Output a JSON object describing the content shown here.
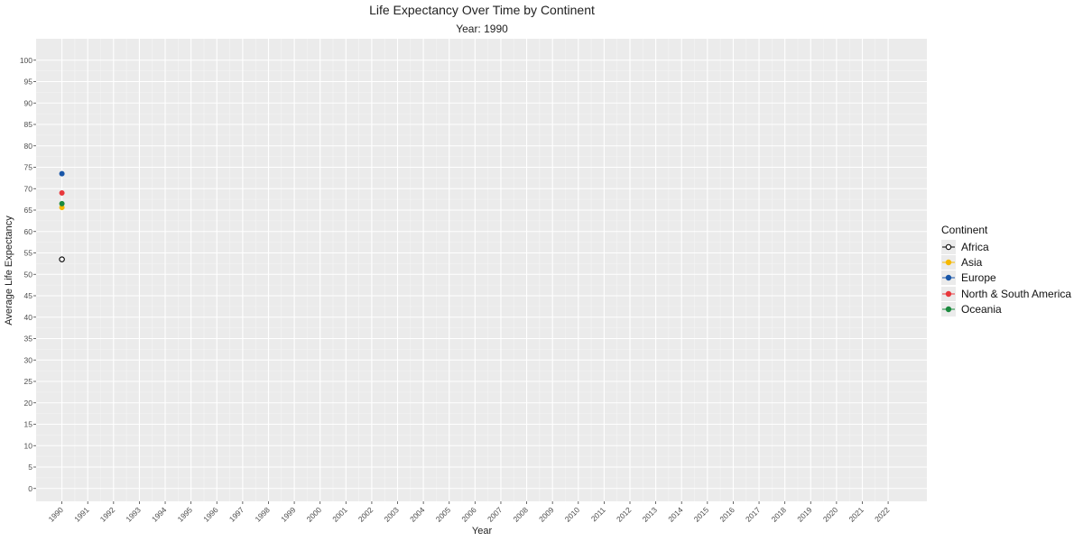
{
  "chart_data": {
    "type": "line",
    "title": "Life Expectancy Over Time by Continent",
    "subtitle": "Year: 1990",
    "xlabel": "Year",
    "ylabel": "Average Life Expectancy",
    "x_ticks": [
      "1990",
      "1991",
      "1992",
      "1993",
      "1994",
      "1995",
      "1996",
      "1997",
      "1998",
      "1999",
      "2000",
      "2001",
      "2002",
      "2003",
      "2004",
      "2005",
      "2006",
      "2007",
      "2008",
      "2009",
      "2010",
      "2011",
      "2012",
      "2013",
      "2014",
      "2015",
      "2016",
      "2017",
      "2018",
      "2019",
      "2020",
      "2021",
      "2022"
    ],
    "xlim": [
      1989,
      2023.5
    ],
    "y_ticks": [
      0,
      5,
      10,
      15,
      20,
      25,
      30,
      35,
      40,
      45,
      50,
      55,
      60,
      65,
      70,
      75,
      80,
      85,
      90,
      95,
      100
    ],
    "ylim": [
      -3,
      105
    ],
    "grid": true,
    "legend_title": "Continent",
    "legend_position": "right",
    "series": [
      {
        "name": "Africa",
        "color": "#ffffff",
        "stroke": "#000000",
        "points": [
          {
            "x": 1990,
            "y": 53.5
          }
        ]
      },
      {
        "name": "Asia",
        "color": "#f5b800",
        "stroke": "#f5b800",
        "points": [
          {
            "x": 1990,
            "y": 65.6
          }
        ]
      },
      {
        "name": "Europe",
        "color": "#1856a8",
        "stroke": "#1856a8",
        "points": [
          {
            "x": 1990,
            "y": 73.5
          }
        ]
      },
      {
        "name": "North & South America",
        "color": "#e8383c",
        "stroke": "#e8383c",
        "points": [
          {
            "x": 1990,
            "y": 69.0
          }
        ]
      },
      {
        "name": "Oceania",
        "color": "#1b8a3e",
        "stroke": "#1b8a3e",
        "points": [
          {
            "x": 1990,
            "y": 66.5
          }
        ]
      }
    ]
  }
}
